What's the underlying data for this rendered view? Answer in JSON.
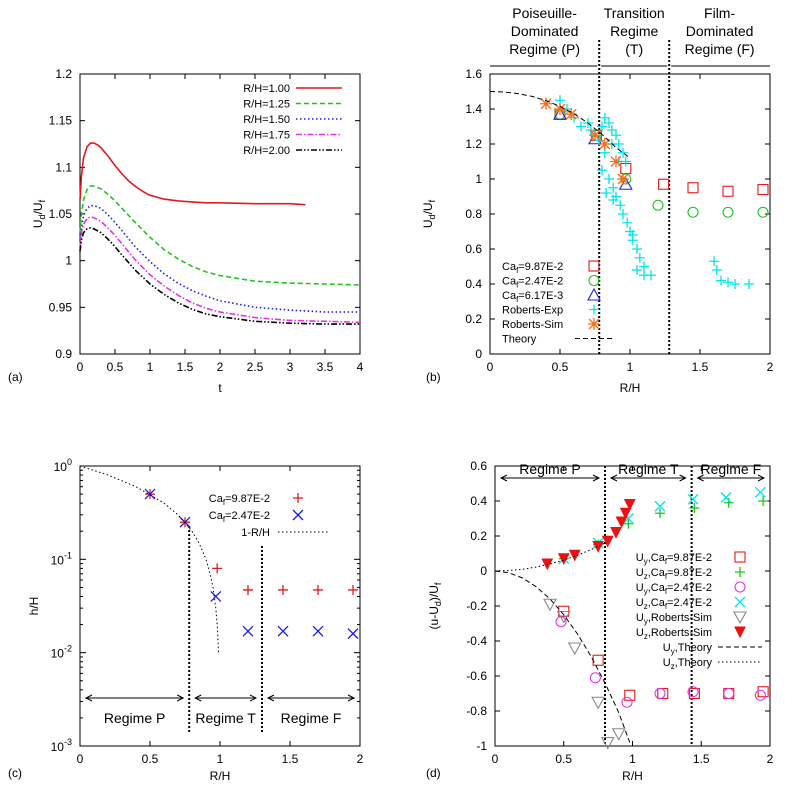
{
  "chart_data": [
    {
      "panel_label": "(a)",
      "type": "line",
      "xlabel": "t",
      "ylabel_main": "U",
      "ylabel_sub": "d",
      "ylabel_div": "/U",
      "ylabel_sub2": "f",
      "xlim": [
        0,
        4
      ],
      "ylim": [
        0.9,
        1.2
      ],
      "xticks": [
        "0",
        "0.5",
        "1",
        "1.5",
        "2",
        "2.5",
        "3",
        "3.5",
        "4"
      ],
      "yticks": [
        "0.9",
        "0.95",
        "1",
        "1.05",
        "1.1",
        "1.15",
        "1.2"
      ],
      "legend_position": "top-right",
      "series": [
        {
          "name": "R/H=1.00",
          "color": "#e41a1c",
          "dash": "solid",
          "x": [
            0,
            0.02,
            0.05,
            0.1,
            0.15,
            0.2,
            0.25,
            0.3,
            0.4,
            0.5,
            0.6,
            0.7,
            0.8,
            0.9,
            1.0,
            1.2,
            1.4,
            1.6,
            1.8,
            2.0,
            2.5,
            3.0,
            3.22
          ],
          "y": [
            1.065,
            1.09,
            1.11,
            1.122,
            1.126,
            1.126,
            1.124,
            1.121,
            1.112,
            1.102,
            1.093,
            1.085,
            1.079,
            1.074,
            1.07,
            1.066,
            1.064,
            1.063,
            1.062,
            1.062,
            1.061,
            1.061,
            1.06
          ]
        },
        {
          "name": "R/H=1.25",
          "color": "#1fc41f",
          "dash": "dashed",
          "x": [
            0,
            0.02,
            0.05,
            0.1,
            0.15,
            0.2,
            0.3,
            0.4,
            0.5,
            0.6,
            0.8,
            1.0,
            1.2,
            1.4,
            1.6,
            1.8,
            2.0,
            2.5,
            3.0,
            3.5,
            4.0
          ],
          "y": [
            1.03,
            1.05,
            1.065,
            1.076,
            1.08,
            1.08,
            1.077,
            1.071,
            1.064,
            1.056,
            1.04,
            1.025,
            1.012,
            1.002,
            0.994,
            0.988,
            0.984,
            0.978,
            0.976,
            0.975,
            0.974
          ]
        },
        {
          "name": "R/H=1.50",
          "color": "#1c1ce6",
          "dash": "dotted",
          "x": [
            0,
            0.02,
            0.05,
            0.1,
            0.15,
            0.2,
            0.3,
            0.4,
            0.5,
            0.6,
            0.8,
            1.0,
            1.2,
            1.4,
            1.6,
            1.8,
            2.0,
            2.5,
            3.0,
            3.5,
            4.0
          ],
          "y": [
            1.02,
            1.035,
            1.048,
            1.056,
            1.059,
            1.059,
            1.056,
            1.049,
            1.041,
            1.032,
            1.014,
            0.999,
            0.986,
            0.976,
            0.968,
            0.962,
            0.957,
            0.95,
            0.947,
            0.945,
            0.945
          ]
        },
        {
          "name": "R/H=1.75",
          "color": "#e633e6",
          "dash": "dashdot",
          "x": [
            0,
            0.02,
            0.05,
            0.1,
            0.15,
            0.2,
            0.3,
            0.4,
            0.5,
            0.6,
            0.8,
            1.0,
            1.2,
            1.4,
            1.6,
            1.8,
            2.0,
            2.5,
            3.0,
            3.5,
            4.0
          ],
          "y": [
            1.015,
            1.03,
            1.039,
            1.045,
            1.047,
            1.046,
            1.042,
            1.035,
            1.027,
            1.018,
            1.0,
            0.985,
            0.973,
            0.963,
            0.955,
            0.949,
            0.945,
            0.939,
            0.936,
            0.935,
            0.934
          ]
        },
        {
          "name": "R/H=2.00",
          "color": "#000000",
          "dash": "dashdotdot",
          "x": [
            0,
            0.02,
            0.05,
            0.1,
            0.15,
            0.2,
            0.3,
            0.4,
            0.5,
            0.6,
            0.8,
            1.0,
            1.2,
            1.4,
            1.6,
            1.8,
            2.0,
            2.5,
            3.0,
            3.5,
            4.0
          ],
          "y": [
            1.01,
            1.022,
            1.03,
            1.034,
            1.035,
            1.034,
            1.03,
            1.023,
            1.015,
            1.006,
            0.989,
            0.975,
            0.964,
            0.955,
            0.948,
            0.943,
            0.94,
            0.935,
            0.933,
            0.932,
            0.932
          ]
        }
      ]
    },
    {
      "panel_label": "(b)",
      "type": "scatter",
      "xlabel": "R/H",
      "ylabel_main": "U",
      "ylabel_sub": "d",
      "ylabel_div": "/U",
      "ylabel_sub2": "f",
      "xlim": [
        0,
        2
      ],
      "ylim": [
        0,
        1.6
      ],
      "xticks": [
        "0",
        "0.5",
        "1",
        "1.5",
        "2"
      ],
      "yticks": [
        "0",
        "0.2",
        "0.4",
        "0.6",
        "0.8",
        "1",
        "1.2",
        "1.4",
        "1.6"
      ],
      "legend_position": "bottom-left",
      "regime_titles": [
        {
          "lines": [
            "Poiseuille-",
            "Dominated",
            "Regime (P)"
          ]
        },
        {
          "lines": [
            "Transition",
            "Regime",
            "(T)"
          ]
        },
        {
          "lines": [
            "Film-",
            "Dominated",
            "Regime (F)"
          ]
        }
      ],
      "regime_bounds": [
        0.78,
        1.28
      ],
      "series": [
        {
          "name": "Ca",
          "sub": "f",
          "suffix": "=9.87E-2",
          "marker": "square",
          "color": "#e41a1c",
          "x": [
            0.5,
            0.76,
            0.97,
            1.24,
            1.45,
            1.7,
            1.95
          ],
          "y": [
            1.37,
            1.25,
            1.06,
            0.97,
            0.95,
            0.93,
            0.94
          ]
        },
        {
          "name": "Ca",
          "sub": "f",
          "suffix": "=2.47E-2",
          "marker": "circle",
          "color": "#1fc41f",
          "x": [
            0.5,
            0.76,
            0.97,
            1.2,
            1.45,
            1.7,
            1.95
          ],
          "y": [
            1.37,
            1.25,
            1.0,
            0.85,
            0.81,
            0.81,
            0.81
          ]
        },
        {
          "name": "Ca",
          "sub": "f",
          "suffix": "=6.17E-3",
          "marker": "triangle",
          "color": "#1c1ce6",
          "x": [
            0.5,
            0.75,
            0.97
          ],
          "y": [
            1.37,
            1.23,
            0.97
          ]
        },
        {
          "name": "Roberts-Exp",
          "marker": "plus",
          "color": "#00e5ee",
          "x": [
            0.5,
            0.55,
            0.6,
            0.65,
            0.7,
            0.72,
            0.75,
            0.8,
            0.82,
            0.85,
            0.87,
            0.9,
            0.92,
            0.95,
            0.97,
            1.0,
            1.02,
            1.05,
            1.07,
            1.1,
            1.15,
            0.8,
            0.85,
            0.88,
            0.9,
            0.93,
            0.95,
            0.98,
            1.02,
            1.05,
            1.1,
            1.6,
            1.62,
            1.65,
            1.7,
            1.75,
            1.85,
            0.82,
            0.87,
            0.92,
            0.78,
            0.83,
            0.88
          ],
          "y": [
            1.45,
            1.4,
            1.35,
            1.3,
            1.32,
            1.28,
            1.25,
            1.3,
            1.35,
            1.32,
            1.28,
            1.25,
            1.2,
            1.15,
            1.1,
            0.7,
            0.65,
            0.6,
            0.55,
            0.5,
            0.45,
            1.05,
            1.0,
            0.95,
            0.9,
            0.85,
            0.8,
            0.75,
            0.68,
            0.48,
            0.45,
            0.53,
            0.48,
            0.42,
            0.41,
            0.4,
            0.4,
            1.15,
            1.2,
            1.1,
            1.22,
            0.92,
            0.88
          ]
        },
        {
          "name": "Roberts-Sim",
          "marker": "asterisk",
          "color": "#ff6a1a",
          "x": [
            0.4,
            0.5,
            0.58,
            0.75,
            0.82,
            0.9,
            0.95
          ],
          "y": [
            1.43,
            1.4,
            1.37,
            1.25,
            1.2,
            1.1,
            1.0
          ]
        },
        {
          "name": "Theory",
          "marker": "none",
          "color": "#000000",
          "dash": "dashed",
          "x": [
            0,
            0.1,
            0.2,
            0.3,
            0.4,
            0.5,
            0.6,
            0.7,
            0.8,
            0.9,
            1.0
          ],
          "y": [
            1.5,
            1.497,
            1.488,
            1.472,
            1.448,
            1.415,
            1.373,
            1.32,
            1.255,
            1.18,
            1.12
          ]
        }
      ]
    },
    {
      "panel_label": "(c)",
      "type": "scatter",
      "scale_y": "log",
      "xlabel": "R/H",
      "ylabel_main": "h/H",
      "xlim": [
        0,
        2
      ],
      "ylim": [
        0.001,
        1
      ],
      "xticks": [
        "0",
        "0.5",
        "1",
        "1.5",
        "2"
      ],
      "yticks_log": [
        {
          "base": "10",
          "exp": "0"
        },
        {
          "base": "10",
          "exp": "-1"
        },
        {
          "base": "10",
          "exp": "-2"
        },
        {
          "base": "10",
          "exp": "-3"
        }
      ],
      "legend_position": "top-right",
      "regime_labels": [
        "Regime P",
        "Regime T",
        "Regime F"
      ],
      "regime_bounds": [
        0.78,
        1.3
      ],
      "series": [
        {
          "name": "Ca",
          "sub": "f",
          "suffix": "=9.87E-2",
          "marker": "plus",
          "color": "#e41a1c",
          "x": [
            0.5,
            0.75,
            0.98,
            1.2,
            1.45,
            1.7,
            1.95
          ],
          "y": [
            0.5,
            0.25,
            0.08,
            0.047,
            0.047,
            0.047,
            0.047
          ]
        },
        {
          "name": "Ca",
          "sub": "f",
          "suffix": "=2.47E-2",
          "marker": "cross",
          "color": "#1c1ce6",
          "x": [
            0.5,
            0.75,
            0.97,
            1.2,
            1.45,
            1.7,
            1.95
          ],
          "y": [
            0.5,
            0.25,
            0.04,
            0.017,
            0.017,
            0.017,
            0.016
          ]
        },
        {
          "name": "1-R/H",
          "marker": "none",
          "color": "#000000",
          "dash": "dotted",
          "x": [
            0,
            0.2,
            0.4,
            0.6,
            0.7,
            0.8,
            0.85,
            0.9,
            0.93,
            0.95,
            0.97,
            0.98,
            0.99
          ],
          "y": [
            1,
            0.8,
            0.6,
            0.4,
            0.3,
            0.2,
            0.15,
            0.1,
            0.07,
            0.05,
            0.03,
            0.02,
            0.01
          ]
        }
      ]
    },
    {
      "panel_label": "(d)",
      "type": "scatter",
      "xlabel": "R/H",
      "ylabel_main": "(u-U",
      "ylabel_sub": "d",
      "ylabel_div": ")/U",
      "ylabel_sub2": "f",
      "xlim": [
        0,
        2
      ],
      "ylim": [
        -1,
        0.6
      ],
      "xticks": [
        "0",
        "0.5",
        "1",
        "1.5",
        "2"
      ],
      "yticks": [
        "-1",
        "-0.8",
        "-0.6",
        "-0.4",
        "-0.2",
        "0",
        "0.2",
        "0.4",
        "0.6"
      ],
      "legend_position": "right",
      "regime_labels": [
        "Regime P",
        "Regime T",
        "Regime F"
      ],
      "regime_bounds": [
        0.8,
        1.43
      ],
      "series": [
        {
          "name": "U",
          "sub": "y",
          "suffix": ",Ca",
          "sub2": "f",
          "suffix2": "=9.87E-2",
          "marker": "square",
          "color": "#e41a1c",
          "x": [
            0.5,
            0.75,
            0.98,
            1.22,
            1.45,
            1.7,
            1.95
          ],
          "y": [
            -0.23,
            -0.51,
            -0.71,
            -0.7,
            -0.7,
            -0.7,
            -0.69
          ]
        },
        {
          "name": "U",
          "sub": "z",
          "suffix": ",Ca",
          "sub2": "f",
          "suffix2": "=9.87E-2",
          "marker": "plus",
          "color": "#1fc41f",
          "x": [
            0.5,
            0.75,
            0.97,
            1.2,
            1.45,
            1.7,
            1.95
          ],
          "y": [
            0.07,
            0.15,
            0.27,
            0.33,
            0.36,
            0.39,
            0.4
          ]
        },
        {
          "name": "U",
          "sub": "y",
          "suffix": ",Ca",
          "sub2": "f",
          "suffix2": "=2.47E-2",
          "marker": "circle",
          "color": "#e633e6",
          "x": [
            0.48,
            0.73,
            0.96,
            1.2,
            1.44,
            1.7,
            1.93
          ],
          "y": [
            -0.29,
            -0.61,
            -0.75,
            -0.7,
            -0.69,
            -0.7,
            -0.71
          ]
        },
        {
          "name": "U",
          "sub": "z",
          "suffix": ",Ca",
          "sub2": "f",
          "suffix2": "=2.47E-2",
          "marker": "cross",
          "color": "#00e5ee",
          "x": [
            0.5,
            0.75,
            0.97,
            1.2,
            1.44,
            1.68,
            1.93
          ],
          "y": [
            0.07,
            0.16,
            0.3,
            0.37,
            0.41,
            0.42,
            0.45
          ]
        },
        {
          "name": "U",
          "sub": "y",
          "suffix": ",Roberts-Sim",
          "marker": "triangle-down",
          "color": "#888888",
          "x": [
            0.4,
            0.5,
            0.58,
            0.75,
            0.82,
            0.9
          ],
          "y": [
            -0.19,
            -0.26,
            -0.44,
            -0.75,
            -0.98,
            -0.93
          ]
        },
        {
          "name": "U",
          "sub": "z",
          "suffix": ",Roberts-Sim",
          "marker": "triangle-down-filled",
          "color": "#ee1111",
          "x": [
            0.38,
            0.5,
            0.58,
            0.75,
            0.82,
            0.88,
            0.92,
            0.95,
            0.98
          ],
          "y": [
            0.04,
            0.07,
            0.09,
            0.14,
            0.17,
            0.22,
            0.28,
            0.33,
            0.38
          ]
        },
        {
          "name": "U",
          "sub": "y",
          "suffix": ",Theory",
          "marker": "none",
          "color": "#000000",
          "dash": "dashed",
          "x": [
            0,
            0.1,
            0.2,
            0.3,
            0.4,
            0.5,
            0.6,
            0.7,
            0.8,
            0.9,
            0.98
          ],
          "y": [
            0,
            -0.01,
            -0.04,
            -0.09,
            -0.16,
            -0.25,
            -0.36,
            -0.49,
            -0.64,
            -0.81,
            -0.98
          ]
        },
        {
          "name": "U",
          "sub": "z",
          "suffix": ",Theory",
          "marker": "none",
          "color": "#000000",
          "dash": "dotted",
          "x": [
            0,
            0.1,
            0.2,
            0.3,
            0.4,
            0.5,
            0.6,
            0.7,
            0.8
          ],
          "y": [
            0,
            0.003,
            0.01,
            0.023,
            0.04,
            0.063,
            0.09,
            0.123,
            0.16
          ]
        }
      ]
    }
  ]
}
